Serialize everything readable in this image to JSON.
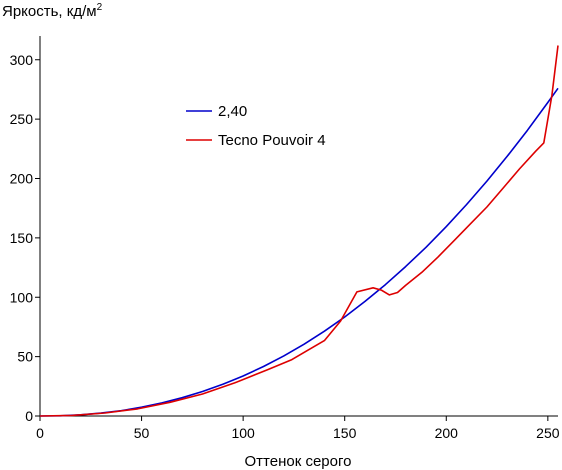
{
  "chart_data": {
    "type": "line",
    "title": "",
    "ylabel": "Яркость, кд/м",
    "ylabel_sup": "2",
    "xlabel": "Оттенок серого",
    "xlim": [
      0,
      255
    ],
    "ylim": [
      0,
      320
    ],
    "x_ticks": [
      0,
      50,
      100,
      150,
      200,
      250
    ],
    "y_ticks": [
      0,
      50,
      100,
      150,
      200,
      250,
      300
    ],
    "grid": false,
    "legend_position": "upper-left-inside",
    "series": [
      {
        "name": "2,40",
        "color": "#0000cc",
        "x": [
          0,
          10,
          20,
          30,
          40,
          50,
          60,
          70,
          80,
          90,
          100,
          110,
          120,
          130,
          140,
          150,
          160,
          170,
          180,
          190,
          200,
          210,
          220,
          230,
          240,
          250,
          255
        ],
        "y": [
          0,
          0.2,
          1.0,
          2.4,
          4.5,
          7.4,
          11.0,
          15.4,
          20.6,
          26.7,
          33.7,
          41.7,
          50.6,
          60.5,
          71.4,
          83.4,
          96.5,
          110.6,
          125.8,
          142.1,
          159.5,
          178.1,
          197.8,
          218.7,
          240.7,
          264.0,
          276.0
        ]
      },
      {
        "name": "Tecno Pouvoir 4",
        "color": "#dd0000",
        "x": [
          0,
          16,
          32,
          48,
          64,
          80,
          96,
          112,
          124,
          132,
          140,
          148,
          156,
          164,
          168,
          172,
          176,
          180,
          188,
          196,
          204,
          212,
          220,
          228,
          236,
          244,
          248,
          252,
          255
        ],
        "y": [
          0,
          0.5,
          2.5,
          6.0,
          11.5,
          18.5,
          28.0,
          39.0,
          47.5,
          55.5,
          63.5,
          80.0,
          104.5,
          108.0,
          106.0,
          102.0,
          104.0,
          110.0,
          121.0,
          134.0,
          148.0,
          162.0,
          176.0,
          192.0,
          208.0,
          223.0,
          230.0,
          270.0,
          312.0
        ]
      }
    ]
  }
}
